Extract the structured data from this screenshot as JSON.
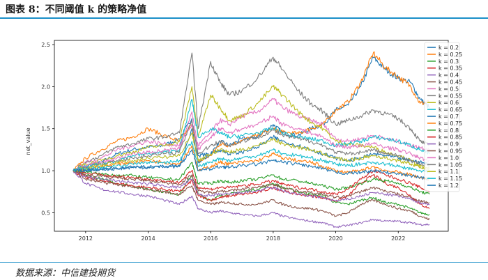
{
  "figure_title": "图表 8：不同阈值 k 的策略净值",
  "source_note": "数据来源：中信建投期货",
  "chart_data": {
    "type": "line",
    "xlabel": "",
    "ylabel": "net_value",
    "xlim": [
      2011.0,
      2023.6
    ],
    "ylim": [
      0.28,
      2.55
    ],
    "x_ticks": [
      2012,
      2014,
      2016,
      2018,
      2020,
      2022
    ],
    "y_ticks": [
      0.5,
      1.0,
      1.5,
      2.0,
      2.5
    ],
    "x_tick_labels": [
      "2012",
      "2014",
      "2016",
      "2018",
      "2020",
      "2022"
    ],
    "y_tick_labels": [
      "0.5",
      "1.0",
      "1.5",
      "2.0",
      "2.5"
    ],
    "legend_position": "top-right",
    "grid": false,
    "x": [
      2011.6,
      2012.0,
      2012.5,
      2013.0,
      2013.5,
      2014.0,
      2014.5,
      2015.0,
      2015.4,
      2015.6,
      2016.0,
      2016.3,
      2016.6,
      2017.0,
      2017.5,
      2018.0,
      2018.3,
      2018.8,
      2019.2,
      2019.6,
      2020.0,
      2020.4,
      2020.8,
      2021.2,
      2021.6,
      2022.0,
      2022.4,
      2022.7,
      2023.0
    ],
    "series": [
      {
        "name": "k = 0.2",
        "color": "#1f77b4",
        "values": [
          1.0,
          1.05,
          1.1,
          1.2,
          1.25,
          1.28,
          1.3,
          1.38,
          1.62,
          1.18,
          1.2,
          1.35,
          1.3,
          1.38,
          1.4,
          1.55,
          1.45,
          1.42,
          1.5,
          1.55,
          1.72,
          1.78,
          2.0,
          2.35,
          2.2,
          2.1,
          2.05,
          1.85,
          1.75
        ]
      },
      {
        "name": "k = 0.25",
        "color": "#ff7f0e",
        "values": [
          1.0,
          1.15,
          1.25,
          1.35,
          1.4,
          1.5,
          1.42,
          1.35,
          1.55,
          1.1,
          1.18,
          1.32,
          1.3,
          1.36,
          1.42,
          1.5,
          1.46,
          1.44,
          1.5,
          1.55,
          1.72,
          1.82,
          2.05,
          2.4,
          2.22,
          2.12,
          2.0,
          1.8,
          1.82
        ]
      },
      {
        "name": "k = 0.3",
        "color": "#2ca02c",
        "values": [
          1.0,
          0.95,
          0.9,
          0.85,
          0.82,
          0.78,
          0.75,
          0.72,
          0.95,
          0.72,
          0.65,
          0.7,
          0.72,
          0.75,
          0.78,
          0.85,
          0.8,
          0.75,
          0.72,
          0.7,
          0.62,
          0.6,
          0.65,
          0.68,
          0.62,
          0.6,
          0.55,
          0.5,
          0.48
        ]
      },
      {
        "name": "k = 0.35",
        "color": "#d62728",
        "values": [
          1.0,
          0.92,
          0.88,
          0.85,
          0.82,
          0.8,
          0.78,
          0.75,
          0.88,
          0.7,
          0.65,
          0.68,
          0.7,
          0.72,
          0.74,
          0.8,
          0.76,
          0.72,
          0.7,
          0.68,
          0.64,
          0.7,
          0.85,
          0.95,
          0.85,
          0.8,
          0.7,
          0.6,
          0.55
        ]
      },
      {
        "name": "k = 0.4",
        "color": "#9467bd",
        "values": [
          1.0,
          0.85,
          0.78,
          0.75,
          0.72,
          0.7,
          0.65,
          0.6,
          0.7,
          0.55,
          0.5,
          0.52,
          0.5,
          0.48,
          0.46,
          0.5,
          0.46,
          0.42,
          0.4,
          0.38,
          0.33,
          0.35,
          0.38,
          0.42,
          0.4,
          0.4,
          0.38,
          0.36,
          0.36
        ]
      },
      {
        "name": "k = 0.45",
        "color": "#8c564b",
        "values": [
          1.0,
          0.9,
          0.86,
          0.84,
          0.8,
          0.78,
          0.75,
          0.72,
          0.82,
          0.65,
          0.6,
          0.62,
          0.62,
          0.6,
          0.6,
          0.65,
          0.6,
          0.56,
          0.55,
          0.52,
          0.46,
          0.5,
          0.6,
          0.65,
          0.6,
          0.55,
          0.52,
          0.46,
          0.42
        ]
      },
      {
        "name": "k = 0.5",
        "color": "#e377c2",
        "values": [
          1.0,
          1.1,
          1.15,
          1.25,
          1.3,
          1.35,
          1.32,
          1.3,
          1.55,
          1.3,
          1.45,
          1.6,
          1.55,
          1.65,
          1.7,
          1.85,
          1.75,
          1.65,
          1.6,
          1.55,
          1.38,
          1.35,
          1.38,
          1.42,
          1.38,
          1.35,
          1.3,
          1.28,
          1.25
        ]
      },
      {
        "name": "k = 0.55",
        "color": "#7f7f7f",
        "values": [
          1.0,
          1.1,
          1.18,
          1.28,
          1.32,
          1.38,
          1.4,
          1.45,
          2.4,
          1.5,
          2.3,
          2.05,
          1.9,
          1.95,
          2.1,
          2.35,
          2.2,
          1.95,
          1.8,
          1.7,
          1.55,
          1.6,
          1.65,
          1.72,
          1.68,
          1.62,
          1.5,
          1.35,
          1.3
        ]
      },
      {
        "name": "k = 0.6",
        "color": "#bcbd22",
        "values": [
          1.0,
          1.08,
          1.12,
          1.18,
          1.22,
          1.28,
          1.3,
          1.35,
          2.0,
          1.4,
          1.9,
          1.75,
          1.6,
          1.65,
          1.8,
          2.0,
          1.9,
          1.7,
          1.58,
          1.5,
          1.35,
          1.32,
          1.3,
          1.28,
          1.22,
          1.18,
          1.12,
          1.05,
          1.0
        ]
      },
      {
        "name": "k = 0.65",
        "color": "#17becf",
        "values": [
          1.0,
          1.05,
          1.08,
          1.12,
          1.18,
          1.2,
          1.22,
          1.25,
          1.85,
          1.4,
          1.5,
          1.45,
          1.4,
          1.42,
          1.45,
          1.5,
          1.45,
          1.4,
          1.38,
          1.35,
          1.3,
          1.32,
          1.35,
          1.4,
          1.38,
          1.35,
          1.3,
          1.25,
          1.2
        ]
      },
      {
        "name": "k = 0.7",
        "color": "#1f77b4",
        "values": [
          1.0,
          1.0,
          1.02,
          1.02,
          1.04,
          1.04,
          1.05,
          1.05,
          1.5,
          1.1,
          1.2,
          1.25,
          1.2,
          1.22,
          1.28,
          1.4,
          1.35,
          1.3,
          1.25,
          1.2,
          1.15,
          1.12,
          1.15,
          1.2,
          1.18,
          1.15,
          1.12,
          1.1,
          1.08
        ]
      },
      {
        "name": "k = 0.75",
        "color": "#ff7f0e",
        "values": [
          1.0,
          1.02,
          1.05,
          1.08,
          1.1,
          1.12,
          1.1,
          1.08,
          1.3,
          1.0,
          1.05,
          1.1,
          1.08,
          1.1,
          1.12,
          1.2,
          1.15,
          1.12,
          1.1,
          1.05,
          1.0,
          0.98,
          1.0,
          1.05,
          1.0,
          0.98,
          0.95,
          0.92,
          0.9
        ]
      },
      {
        "name": "k = 0.8",
        "color": "#2ca02c",
        "values": [
          1.0,
          0.98,
          0.96,
          0.95,
          0.94,
          0.92,
          0.9,
          0.9,
          1.1,
          0.85,
          0.85,
          0.88,
          0.86,
          0.88,
          0.9,
          0.95,
          0.9,
          0.88,
          0.85,
          0.82,
          0.78,
          0.8,
          0.85,
          0.9,
          0.88,
          0.85,
          0.8,
          0.75,
          0.72
        ]
      },
      {
        "name": "k = 0.85",
        "color": "#d62728",
        "values": [
          1.0,
          0.97,
          0.95,
          0.93,
          0.92,
          0.9,
          0.88,
          0.86,
          1.0,
          0.8,
          0.78,
          0.8,
          0.8,
          0.82,
          0.84,
          0.88,
          0.84,
          0.8,
          0.78,
          0.75,
          0.72,
          0.78,
          0.9,
          1.0,
          0.95,
          0.9,
          0.85,
          0.8,
          0.75
        ]
      },
      {
        "name": "k = 0.9",
        "color": "#9467bd",
        "values": [
          1.0,
          0.93,
          0.9,
          0.88,
          0.86,
          0.84,
          0.82,
          0.8,
          0.9,
          0.72,
          0.7,
          0.72,
          0.72,
          0.74,
          0.76,
          0.8,
          0.76,
          0.72,
          0.7,
          0.68,
          0.64,
          0.66,
          0.7,
          0.74,
          0.72,
          0.7,
          0.66,
          0.62,
          0.6
        ]
      },
      {
        "name": "k = 0.95",
        "color": "#8c564b",
        "values": [
          1.0,
          0.95,
          0.93,
          0.92,
          0.9,
          0.88,
          0.86,
          0.84,
          0.95,
          0.76,
          0.74,
          0.76,
          0.76,
          0.78,
          0.8,
          0.84,
          0.8,
          0.76,
          0.74,
          0.72,
          0.68,
          0.7,
          0.75,
          0.8,
          0.76,
          0.72,
          0.68,
          0.64,
          0.62
        ]
      },
      {
        "name": "k = 1.0",
        "color": "#e377c2",
        "values": [
          1.0,
          1.06,
          1.1,
          1.15,
          1.2,
          1.22,
          1.24,
          1.26,
          1.7,
          1.25,
          1.4,
          1.5,
          1.45,
          1.5,
          1.55,
          1.65,
          1.55,
          1.5,
          1.45,
          1.4,
          1.3,
          1.28,
          1.3,
          1.32,
          1.28,
          1.25,
          1.2,
          1.15,
          1.12
        ]
      },
      {
        "name": "k = 1.05",
        "color": "#7f7f7f",
        "values": [
          1.0,
          1.04,
          1.08,
          1.12,
          1.15,
          1.18,
          1.2,
          1.22,
          1.6,
          1.2,
          1.3,
          1.35,
          1.3,
          1.35,
          1.4,
          1.48,
          1.42,
          1.38,
          1.35,
          1.3,
          1.22,
          1.2,
          1.22,
          1.25,
          1.2,
          1.18,
          1.12,
          1.08,
          1.05
        ]
      },
      {
        "name": "k = 1.1",
        "color": "#bcbd22",
        "values": [
          1.0,
          1.03,
          1.06,
          1.1,
          1.12,
          1.15,
          1.16,
          1.18,
          1.45,
          1.12,
          1.2,
          1.25,
          1.22,
          1.25,
          1.3,
          1.38,
          1.32,
          1.28,
          1.25,
          1.2,
          1.15,
          1.12,
          1.15,
          1.18,
          1.15,
          1.12,
          1.08,
          1.05,
          1.02
        ]
      },
      {
        "name": "k = 1.15",
        "color": "#17becf",
        "values": [
          1.0,
          1.02,
          1.04,
          1.06,
          1.08,
          1.1,
          1.1,
          1.12,
          1.35,
          1.05,
          1.1,
          1.15,
          1.12,
          1.15,
          1.18,
          1.25,
          1.2,
          1.18,
          1.15,
          1.12,
          1.08,
          1.06,
          1.08,
          1.1,
          1.08,
          1.05,
          1.02,
          1.0,
          0.98
        ]
      },
      {
        "name": "k = 1.2",
        "color": "#1f77b4",
        "values": [
          1.0,
          1.01,
          1.02,
          1.03,
          1.04,
          1.05,
          1.05,
          1.06,
          1.25,
          1.0,
          1.02,
          1.05,
          1.04,
          1.06,
          1.08,
          1.12,
          1.1,
          1.08,
          1.05,
          1.02,
          0.98,
          0.97,
          0.98,
          1.0,
          0.98,
          0.96,
          0.94,
          0.92,
          0.9
        ]
      }
    ]
  }
}
